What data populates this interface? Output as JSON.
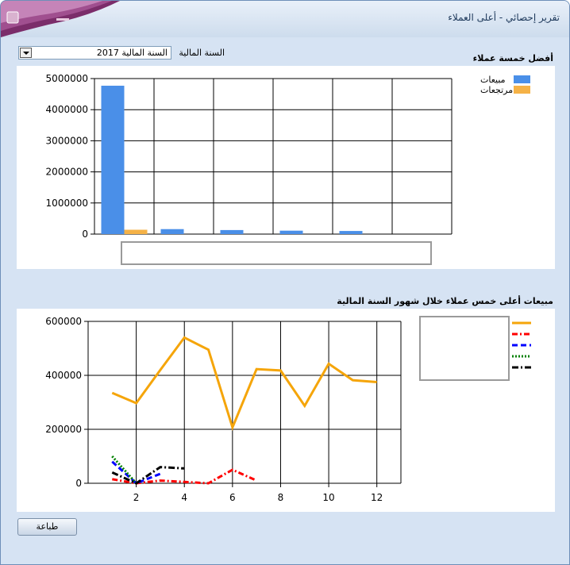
{
  "window": {
    "title": "تقرير إحصائي - أعلى العملاء"
  },
  "filter": {
    "label": "السنة المالية",
    "selected": "السنة المالية 2017"
  },
  "top_chart_title": "أفضل خمسة عملاء",
  "line_chart_title": "مبيعات أعلى خمس عملاء خلال شهور السنة المالية",
  "print_button": "طباعة",
  "colors": {
    "sales": "#4a8fe8",
    "returns": "#f5b247",
    "s1": "#f5a50a",
    "s2": "#ff0000",
    "s3": "#0000ff",
    "s4": "#008000",
    "s5": "#000000"
  },
  "chart_data": [
    {
      "type": "bar",
      "title": "أفضل خمسة عملاء",
      "categories": [
        "",
        "",
        "",
        "",
        "",
        ""
      ],
      "series": [
        {
          "name": "مبيعات",
          "values": [
            4770000,
            160000,
            130000,
            110000,
            100000,
            0
          ]
        },
        {
          "name": "مرتجعات",
          "values": [
            140000,
            0,
            0,
            0,
            0,
            0
          ]
        }
      ],
      "yticks": [
        "0",
        "1000000",
        "2000000",
        "3000000",
        "4000000",
        "5000000"
      ],
      "ylim": [
        0,
        5000000
      ],
      "grid": true,
      "legend": "top-right"
    },
    {
      "type": "line",
      "title": "مبيعات أعلى خمس عملاء خلال شهور السنة المالية",
      "xlim": [
        0,
        13
      ],
      "ylim": [
        0,
        600000
      ],
      "xticks": [
        "2",
        "4",
        "6",
        "8",
        "10",
        "12"
      ],
      "yticks": [
        "0",
        "200000",
        "400000",
        "600000"
      ],
      "grid": true,
      "legend": "top-right",
      "series": [
        {
          "x": [
            1,
            2,
            3,
            4,
            5,
            6,
            7,
            8,
            9,
            10,
            11,
            12
          ],
          "values": [
            335000,
            297000,
            420000,
            540000,
            495000,
            207000,
            423000,
            418000,
            287000,
            443000,
            382000,
            375000
          ]
        },
        {
          "x": [
            1,
            2,
            3,
            4,
            5,
            6,
            7
          ],
          "values": [
            15000,
            0,
            10000,
            5000,
            0,
            50000,
            10000
          ]
        },
        {
          "x": [
            1,
            2,
            3
          ],
          "values": [
            80000,
            0,
            35000
          ]
        },
        {
          "x": [
            1,
            2
          ],
          "values": [
            100000,
            0
          ]
        },
        {
          "x": [
            1,
            2,
            3,
            4
          ],
          "values": [
            40000,
            0,
            60000,
            55000
          ]
        }
      ]
    }
  ]
}
